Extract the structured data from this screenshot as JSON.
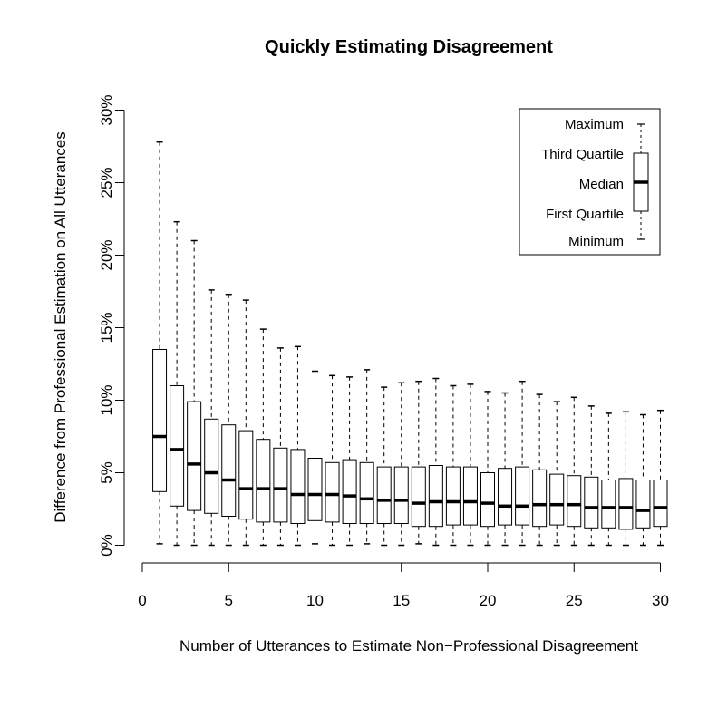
{
  "chart_data": {
    "type": "boxplot",
    "title": "Quickly Estimating Disagreement",
    "xlabel": "Number of Utterances to Estimate Non−Professional Disagreement",
    "ylabel": "Difference from Professional Estimation on All Utterances",
    "xlim": [
      0,
      30
    ],
    "ylim": [
      0,
      30
    ],
    "x_ticks": [
      0,
      5,
      10,
      15,
      20,
      25,
      30
    ],
    "x_tick_labels": [
      "0",
      "5",
      "10",
      "15",
      "20",
      "25",
      "30"
    ],
    "y_ticks": [
      0,
      5,
      10,
      15,
      20,
      25,
      30
    ],
    "y_tick_labels": [
      "0%",
      "5%",
      "10%",
      "15%",
      "20%",
      "25%",
      "30%"
    ],
    "legend": {
      "placement": "top-right",
      "items": [
        "Maximum",
        "Third Quartile",
        "Median",
        "First Quartile",
        "Minimum"
      ]
    },
    "boxes": [
      {
        "n": 1,
        "min": 0.1,
        "q1": 3.7,
        "median": 7.5,
        "q3": 13.5,
        "max": 27.8
      },
      {
        "n": 2,
        "min": 0.0,
        "q1": 2.7,
        "median": 6.6,
        "q3": 11.0,
        "max": 22.3
      },
      {
        "n": 3,
        "min": 0.0,
        "q1": 2.4,
        "median": 5.6,
        "q3": 9.9,
        "max": 21.0
      },
      {
        "n": 4,
        "min": 0.0,
        "q1": 2.2,
        "median": 5.0,
        "q3": 8.7,
        "max": 17.6
      },
      {
        "n": 5,
        "min": 0.0,
        "q1": 2.0,
        "median": 4.5,
        "q3": 8.3,
        "max": 17.3
      },
      {
        "n": 6,
        "min": 0.0,
        "q1": 1.8,
        "median": 3.9,
        "q3": 7.9,
        "max": 16.9
      },
      {
        "n": 7,
        "min": 0.0,
        "q1": 1.6,
        "median": 3.9,
        "q3": 7.3,
        "max": 14.9
      },
      {
        "n": 8,
        "min": 0.0,
        "q1": 1.6,
        "median": 3.9,
        "q3": 6.7,
        "max": 13.6
      },
      {
        "n": 9,
        "min": 0.0,
        "q1": 1.5,
        "median": 3.5,
        "q3": 6.6,
        "max": 13.7
      },
      {
        "n": 10,
        "min": 0.1,
        "q1": 1.7,
        "median": 3.5,
        "q3": 6.0,
        "max": 12.0
      },
      {
        "n": 11,
        "min": 0.0,
        "q1": 1.6,
        "median": 3.5,
        "q3": 5.7,
        "max": 11.7
      },
      {
        "n": 12,
        "min": 0.0,
        "q1": 1.5,
        "median": 3.4,
        "q3": 5.9,
        "max": 11.6
      },
      {
        "n": 13,
        "min": 0.1,
        "q1": 1.5,
        "median": 3.2,
        "q3": 5.7,
        "max": 12.1
      },
      {
        "n": 14,
        "min": 0.0,
        "q1": 1.5,
        "median": 3.1,
        "q3": 5.4,
        "max": 10.9
      },
      {
        "n": 15,
        "min": 0.0,
        "q1": 1.5,
        "median": 3.1,
        "q3": 5.4,
        "max": 11.2
      },
      {
        "n": 16,
        "min": 0.1,
        "q1": 1.3,
        "median": 2.9,
        "q3": 5.4,
        "max": 11.3
      },
      {
        "n": 17,
        "min": 0.0,
        "q1": 1.3,
        "median": 3.0,
        "q3": 5.5,
        "max": 11.5
      },
      {
        "n": 18,
        "min": 0.0,
        "q1": 1.4,
        "median": 3.0,
        "q3": 5.4,
        "max": 11.0
      },
      {
        "n": 19,
        "min": 0.0,
        "q1": 1.4,
        "median": 3.0,
        "q3": 5.4,
        "max": 11.1
      },
      {
        "n": 20,
        "min": 0.0,
        "q1": 1.3,
        "median": 2.9,
        "q3": 5.0,
        "max": 10.6
      },
      {
        "n": 21,
        "min": 0.0,
        "q1": 1.4,
        "median": 2.7,
        "q3": 5.3,
        "max": 10.5
      },
      {
        "n": 22,
        "min": 0.0,
        "q1": 1.4,
        "median": 2.7,
        "q3": 5.4,
        "max": 11.3
      },
      {
        "n": 23,
        "min": 0.0,
        "q1": 1.3,
        "median": 2.8,
        "q3": 5.2,
        "max": 10.4
      },
      {
        "n": 24,
        "min": 0.0,
        "q1": 1.4,
        "median": 2.8,
        "q3": 4.9,
        "max": 9.9
      },
      {
        "n": 25,
        "min": 0.0,
        "q1": 1.3,
        "median": 2.8,
        "q3": 4.8,
        "max": 10.2
      },
      {
        "n": 26,
        "min": 0.0,
        "q1": 1.2,
        "median": 2.6,
        "q3": 4.7,
        "max": 9.6
      },
      {
        "n": 27,
        "min": 0.0,
        "q1": 1.2,
        "median": 2.6,
        "q3": 4.5,
        "max": 9.1
      },
      {
        "n": 28,
        "min": 0.0,
        "q1": 1.1,
        "median": 2.6,
        "q3": 4.6,
        "max": 9.2
      },
      {
        "n": 29,
        "min": 0.0,
        "q1": 1.2,
        "median": 2.4,
        "q3": 4.5,
        "max": 9.0
      },
      {
        "n": 30,
        "min": 0.0,
        "q1": 1.3,
        "median": 2.6,
        "q3": 4.5,
        "max": 9.3
      }
    ]
  }
}
